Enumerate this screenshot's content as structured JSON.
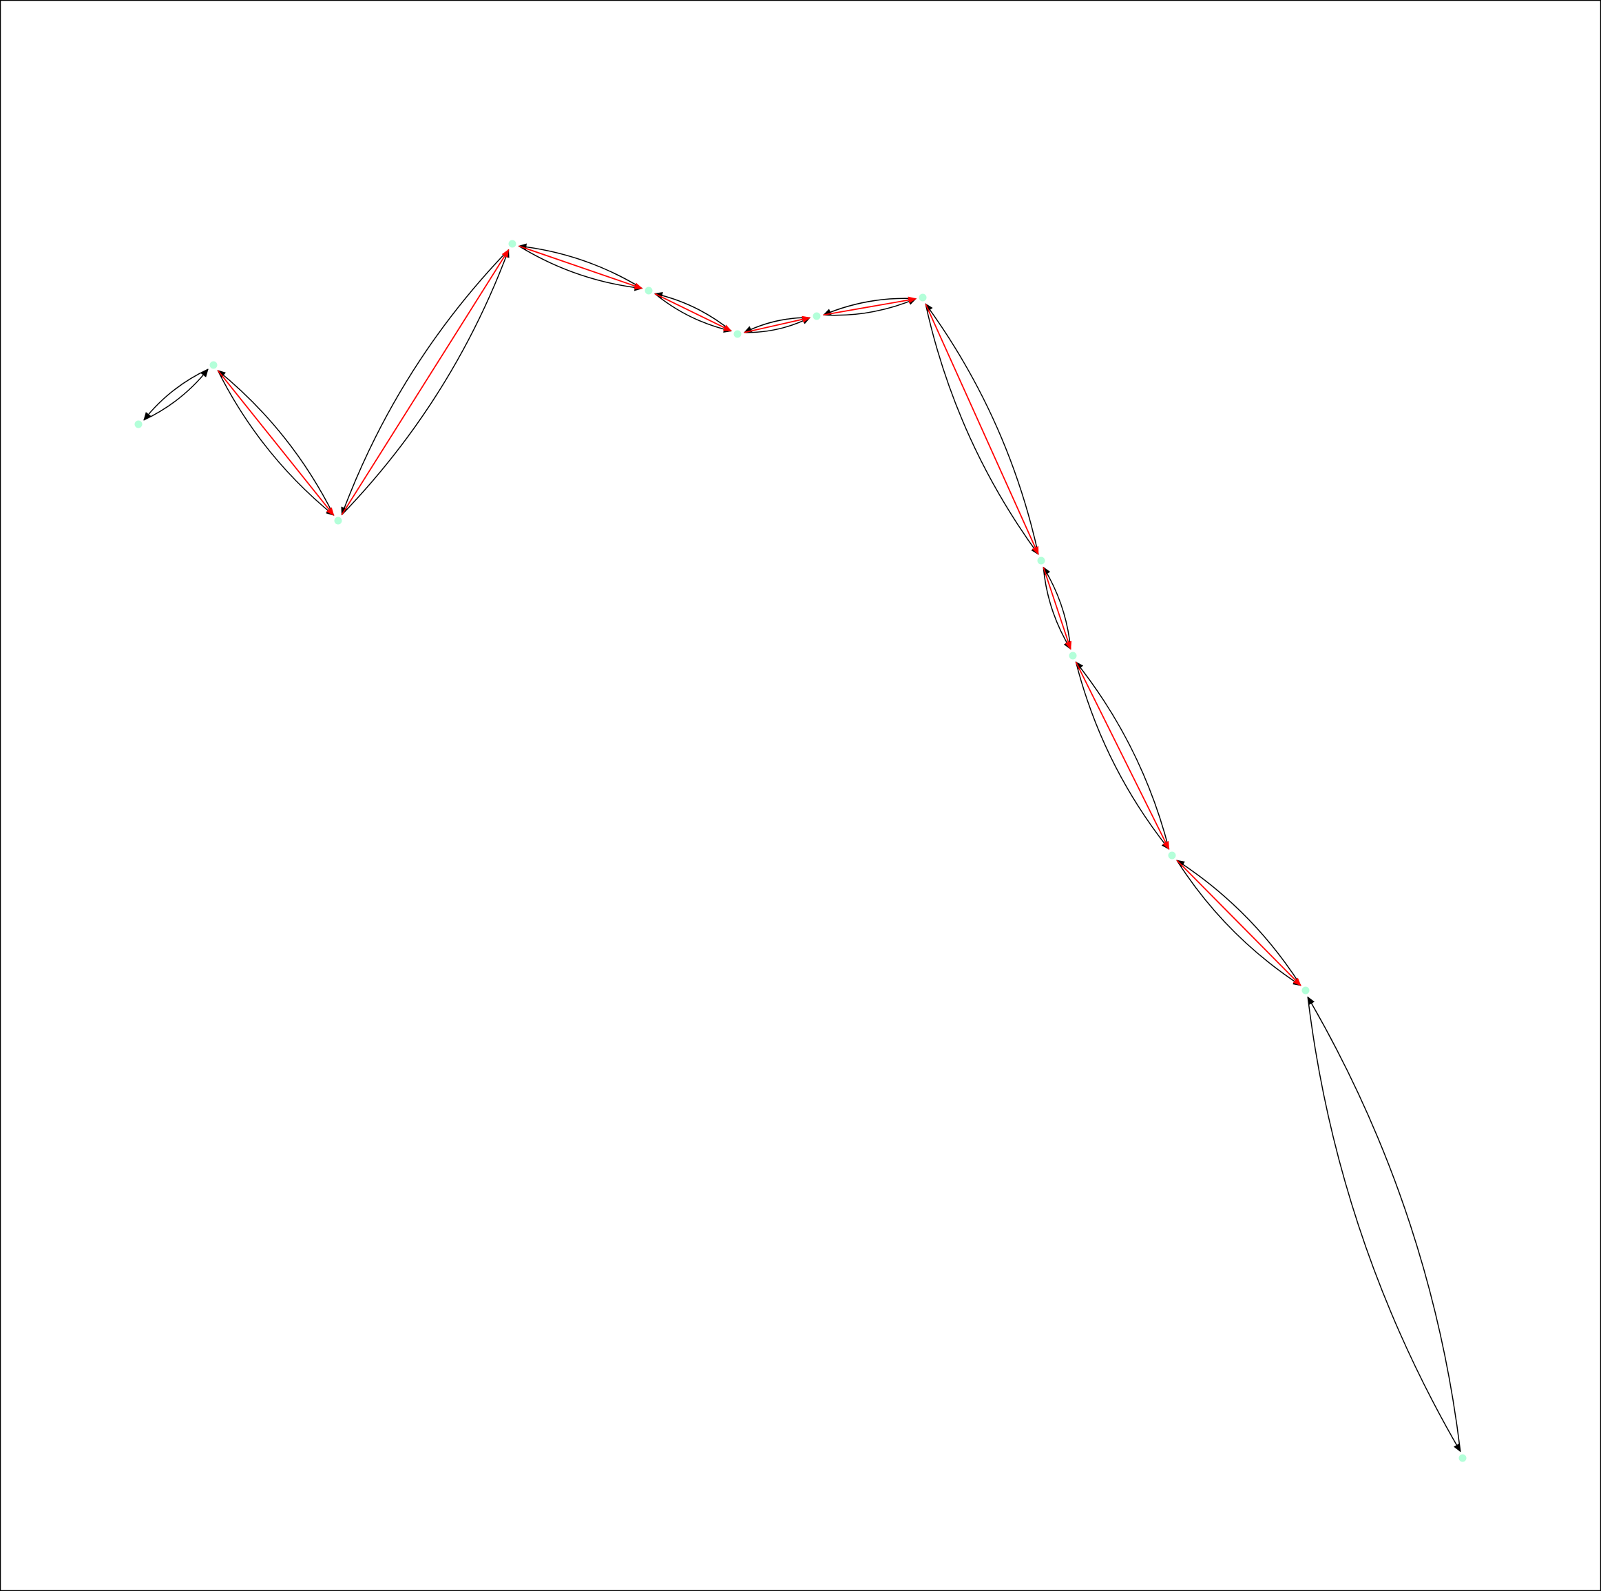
{
  "graph": {
    "node_color": "#b3ffd9",
    "edge_color": "#000000",
    "highlight_color": "#ff0000",
    "directed": true,
    "nodes": [
      {
        "id": "n0"
      },
      {
        "id": "n1"
      },
      {
        "id": "n2"
      },
      {
        "id": "n3"
      },
      {
        "id": "n4"
      },
      {
        "id": "n5"
      },
      {
        "id": "n6"
      },
      {
        "id": "n7"
      },
      {
        "id": "n8"
      },
      {
        "id": "n9"
      },
      {
        "id": "n10"
      },
      {
        "id": "n11"
      },
      {
        "id": "n12"
      }
    ],
    "edges": [
      {
        "source": "n0",
        "target": "n1"
      },
      {
        "source": "n1",
        "target": "n0"
      },
      {
        "source": "n1",
        "target": "n2"
      },
      {
        "source": "n2",
        "target": "n1"
      },
      {
        "source": "n2",
        "target": "n3"
      },
      {
        "source": "n3",
        "target": "n2"
      },
      {
        "source": "n3",
        "target": "n4"
      },
      {
        "source": "n4",
        "target": "n3"
      },
      {
        "source": "n4",
        "target": "n5"
      },
      {
        "source": "n5",
        "target": "n4"
      },
      {
        "source": "n5",
        "target": "n6"
      },
      {
        "source": "n6",
        "target": "n5"
      },
      {
        "source": "n6",
        "target": "n7"
      },
      {
        "source": "n7",
        "target": "n6"
      },
      {
        "source": "n7",
        "target": "n8"
      },
      {
        "source": "n8",
        "target": "n7"
      },
      {
        "source": "n8",
        "target": "n9"
      },
      {
        "source": "n9",
        "target": "n8"
      },
      {
        "source": "n9",
        "target": "n10"
      },
      {
        "source": "n10",
        "target": "n9"
      },
      {
        "source": "n10",
        "target": "n11"
      },
      {
        "source": "n11",
        "target": "n10"
      },
      {
        "source": "n11",
        "target": "n12"
      },
      {
        "source": "n12",
        "target": "n11"
      }
    ],
    "highlighted_path": [
      {
        "source": "n1",
        "target": "n2"
      },
      {
        "source": "n2",
        "target": "n3"
      },
      {
        "source": "n3",
        "target": "n4"
      },
      {
        "source": "n4",
        "target": "n5"
      },
      {
        "source": "n5",
        "target": "n6"
      },
      {
        "source": "n6",
        "target": "n7"
      },
      {
        "source": "n7",
        "target": "n8"
      },
      {
        "source": "n8",
        "target": "n9"
      },
      {
        "source": "n9",
        "target": "n10"
      },
      {
        "source": "n10",
        "target": "n11"
      }
    ]
  }
}
